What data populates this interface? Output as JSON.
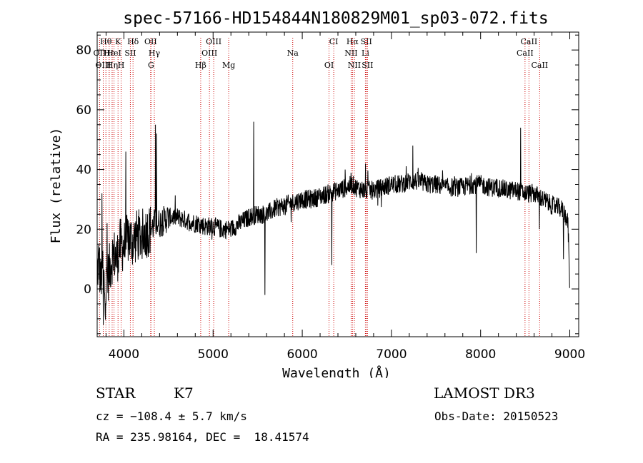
{
  "chart_data": {
    "type": "line",
    "title": "spec-57166-HD154844N180829M01_sp03-072.fits",
    "xlabel": "Wavelength (Å)",
    "ylabel": "Flux (relative)",
    "xlim": [
      3700,
      9100
    ],
    "ylim": [
      -16,
      86
    ],
    "xticks": [
      4000,
      5000,
      6000,
      7000,
      8000,
      9000
    ],
    "yticks": [
      0,
      20,
      40,
      60,
      80
    ],
    "grid": false,
    "line_color": "#000000",
    "marker_color": "#cc0000",
    "spectrum_anchors": {
      "x": [
        3700,
        3720,
        3740,
        3760,
        3790,
        3820,
        3850,
        3880,
        3920,
        3960,
        4000,
        4050,
        4100,
        4150,
        4200,
        4250,
        4300,
        4330,
        4340,
        4360,
        4400,
        4450,
        4500,
        4600,
        4700,
        4800,
        4850,
        4900,
        5000,
        5100,
        5200,
        5300,
        5400,
        5500,
        5600,
        5700,
        5800,
        5900,
        6000,
        6100,
        6200,
        6300,
        6400,
        6500,
        6560,
        6600,
        6700,
        6800,
        6900,
        7000,
        7100,
        7200,
        7300,
        7400,
        7500,
        7600,
        7700,
        7800,
        7900,
        8000,
        8100,
        8200,
        8300,
        8400,
        8500,
        8600,
        8700,
        8800,
        8900,
        8950,
        8980,
        9000
      ],
      "y": [
        5,
        10,
        2,
        8,
        -2,
        4,
        8,
        12,
        10,
        15,
        14,
        17,
        16,
        18,
        18,
        19,
        20,
        21,
        22,
        22,
        22,
        23,
        24,
        24,
        23,
        22,
        22,
        21,
        21,
        20,
        20,
        22,
        24,
        25,
        25,
        27,
        28,
        29,
        30,
        30,
        31,
        32,
        33,
        34,
        35,
        34,
        33,
        33,
        34,
        35,
        35,
        36,
        36,
        35,
        35,
        34,
        34,
        34,
        35,
        35,
        34,
        34,
        33,
        33,
        32,
        32,
        30,
        28,
        27,
        25,
        22,
        0
      ]
    },
    "spikes": [
      {
        "x": 3755,
        "y": 32
      },
      {
        "x": 3770,
        "y": -12
      },
      {
        "x": 3810,
        "y": 22
      },
      {
        "x": 4020,
        "y": 46
      },
      {
        "x": 4355,
        "y": 55
      },
      {
        "x": 4365,
        "y": 52
      },
      {
        "x": 5455,
        "y": 56
      },
      {
        "x": 5580,
        "y": -2
      },
      {
        "x": 6330,
        "y": 8
      },
      {
        "x": 6480,
        "y": 40
      },
      {
        "x": 6710,
        "y": 42
      },
      {
        "x": 7240,
        "y": 48
      },
      {
        "x": 7950,
        "y": 12
      },
      {
        "x": 8450,
        "y": 54
      },
      {
        "x": 8660,
        "y": 20
      },
      {
        "x": 8930,
        "y": 10
      }
    ],
    "line_markers": [
      {
        "label": "Hθ",
        "x": 3798,
        "row": 0
      },
      {
        "label": "K",
        "x": 3934,
        "row": 0
      },
      {
        "label": "Hδ",
        "x": 4102,
        "row": 0
      },
      {
        "label": "OII",
        "x": 4300,
        "row": 0
      },
      {
        "label": "OIII",
        "x": 5007,
        "row": 0
      },
      {
        "label": "CI",
        "x": 6353,
        "row": 0
      },
      {
        "label": "Hα",
        "x": 6563,
        "row": 0
      },
      {
        "label": "SII",
        "x": 6718,
        "row": 0
      },
      {
        "label": "CaII",
        "x": 8542,
        "row": 0
      },
      {
        "label": "OII",
        "x": 3727,
        "row": 1
      },
      {
        "label": "Hε",
        "x": 3835,
        "row": 1
      },
      {
        "label": "HeI",
        "x": 3889,
        "row": 1
      },
      {
        "label": "SII",
        "x": 4072,
        "row": 1
      },
      {
        "label": "Hγ",
        "x": 4341,
        "row": 1
      },
      {
        "label": "OIII",
        "x": 4959,
        "row": 1
      },
      {
        "label": "Na",
        "x": 5893,
        "row": 1
      },
      {
        "label": "NII",
        "x": 6548,
        "row": 1
      },
      {
        "label": "Li",
        "x": 6708,
        "row": 1
      },
      {
        "label": "CaII",
        "x": 8498,
        "row": 1
      },
      {
        "label": "OIII",
        "x": 3768,
        "row": 2
      },
      {
        "label": "Hη",
        "x": 3868,
        "row": 2
      },
      {
        "label": "H",
        "x": 3969,
        "row": 2
      },
      {
        "label": "G",
        "x": 4304,
        "row": 2
      },
      {
        "label": "Hβ",
        "x": 4861,
        "row": 2
      },
      {
        "label": "Mg",
        "x": 5175,
        "row": 2
      },
      {
        "label": "OI",
        "x": 6300,
        "row": 2
      },
      {
        "label": "NII",
        "x": 6584,
        "row": 2
      },
      {
        "label": "SII",
        "x": 6731,
        "row": 2
      },
      {
        "label": "CaII",
        "x": 8662,
        "row": 2
      }
    ]
  },
  "info": {
    "object_class": "STAR",
    "subclass": "K7",
    "survey": "LAMOST DR3",
    "cz": "cz = −108.4 ± 5.7 km/s",
    "obs_date": "Obs-Date: 20150523",
    "coords": "RA = 235.98164, DEC =  18.41574"
  }
}
